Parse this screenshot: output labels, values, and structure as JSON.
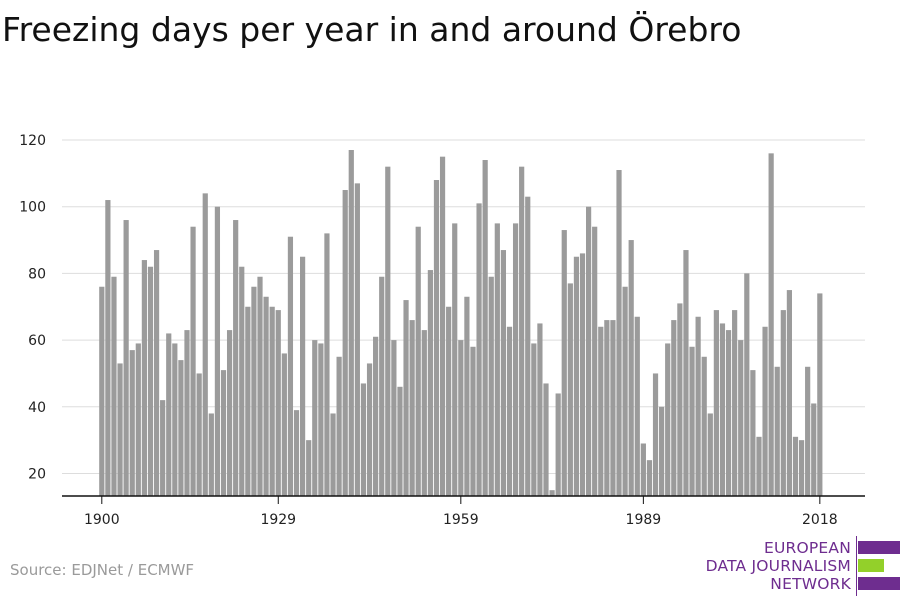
{
  "title": "Freezing days per year in and around Örebro",
  "source": "Source: EDJNet / ECMWF",
  "logo": {
    "lines": [
      "EUROPEAN",
      "DATA JOURNALISM",
      "NETWORK"
    ],
    "colors": {
      "text": "#6e2d8f",
      "accent": "#93d02a"
    }
  },
  "chart_data": {
    "type": "bar",
    "title": "Freezing days per year in and around Örebro",
    "xlabel": "",
    "ylabel": "",
    "color": "#9b9b9b",
    "grid": true,
    "ylim": [
      13,
      125
    ],
    "y_ticks": [
      20,
      40,
      60,
      80,
      100,
      120
    ],
    "x_ticks": [
      1900,
      1929,
      1959,
      1989,
      2018
    ],
    "categories": [
      1900,
      1901,
      1902,
      1903,
      1904,
      1905,
      1906,
      1907,
      1908,
      1909,
      1910,
      1911,
      1912,
      1913,
      1914,
      1915,
      1916,
      1917,
      1918,
      1919,
      1920,
      1921,
      1922,
      1923,
      1924,
      1925,
      1926,
      1927,
      1928,
      1929,
      1930,
      1931,
      1932,
      1933,
      1934,
      1935,
      1936,
      1937,
      1938,
      1939,
      1940,
      1941,
      1942,
      1943,
      1944,
      1945,
      1946,
      1947,
      1948,
      1949,
      1950,
      1951,
      1952,
      1953,
      1954,
      1955,
      1956,
      1957,
      1958,
      1959,
      1960,
      1961,
      1962,
      1963,
      1964,
      1965,
      1966,
      1967,
      1968,
      1969,
      1970,
      1971,
      1972,
      1973,
      1974,
      1975,
      1976,
      1977,
      1978,
      1979,
      1980,
      1981,
      1982,
      1983,
      1984,
      1985,
      1986,
      1987,
      1988,
      1989,
      1990,
      1991,
      1992,
      1993,
      1994,
      1995,
      1996,
      1997,
      1998,
      1999,
      2000,
      2001,
      2002,
      2003,
      2004,
      2005,
      2006,
      2007,
      2008,
      2009,
      2010,
      2011,
      2012,
      2013,
      2014,
      2015,
      2016,
      2017,
      2018
    ],
    "values": [
      76,
      102,
      79,
      53,
      96,
      57,
      59,
      84,
      82,
      87,
      42,
      62,
      59,
      54,
      63,
      94,
      50,
      104,
      38,
      100,
      51,
      63,
      96,
      82,
      70,
      76,
      79,
      73,
      70,
      69,
      56,
      91,
      39,
      85,
      30,
      60,
      59,
      92,
      38,
      55,
      105,
      117,
      107,
      47,
      53,
      61,
      79,
      112,
      60,
      46,
      72,
      66,
      94,
      63,
      81,
      108,
      115,
      70,
      95,
      60,
      73,
      58,
      101,
      114,
      79,
      95,
      87,
      64,
      95,
      112,
      103,
      59,
      65,
      47,
      15,
      44,
      93,
      77,
      85,
      86,
      100,
      94,
      64,
      66,
      66,
      111,
      76,
      90,
      67,
      29,
      24,
      50,
      40,
      59,
      66,
      71,
      87,
      58,
      67,
      55,
      38,
      69,
      65,
      63,
      69,
      60,
      80,
      51,
      31,
      64,
      116,
      52,
      69,
      75,
      31,
      30,
      52,
      41,
      74
    ]
  }
}
